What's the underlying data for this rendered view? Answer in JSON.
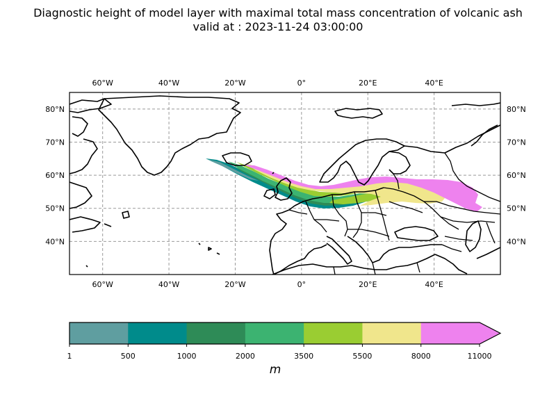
{
  "title": {
    "line1": "Diagnostic height of model layer with maximal total mass concentration of volcanic ash",
    "line2": "valid at : 2023-11-24 03:00:00"
  },
  "map": {
    "lon_range": [
      -70,
      60
    ],
    "lat_range": [
      30,
      85
    ],
    "gridlines": true,
    "lon_ticks": [
      {
        "value": -60,
        "label": "60°W"
      },
      {
        "value": -40,
        "label": "40°W"
      },
      {
        "value": -20,
        "label": "20°W"
      },
      {
        "value": 0,
        "label": "0°"
      },
      {
        "value": 20,
        "label": "20°E"
      },
      {
        "value": 40,
        "label": "40°E"
      }
    ],
    "lat_ticks": [
      {
        "value": 80,
        "label": "80°N"
      },
      {
        "value": 70,
        "label": "70°N"
      },
      {
        "value": 60,
        "label": "60°N"
      },
      {
        "value": 50,
        "label": "50°N"
      },
      {
        "value": 40,
        "label": "40°N"
      }
    ],
    "plume_source_lonlat": [
      -29,
      65
    ]
  },
  "colorbar": {
    "bounds": [
      "1",
      "500",
      "1000",
      "2000",
      "3500",
      "5500",
      "8000",
      "11000"
    ],
    "colors": [
      "#5f9ea0",
      "#008b8b",
      "#2e8b57",
      "#3cb371",
      "#9acd32",
      "#f0e68c",
      "#ee82ee"
    ],
    "extend": "max",
    "unit": "m"
  }
}
